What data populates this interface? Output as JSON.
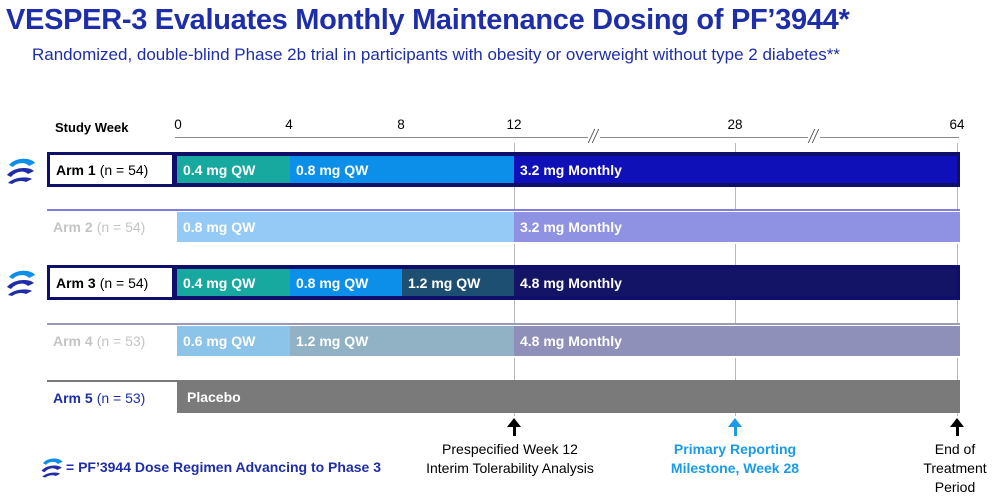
{
  "title": "VESPER-3 Evaluates Monthly Maintenance Dosing of PF’3944*",
  "subtitle": "Randomized, double-blind Phase 2b trial in participants with obesity or overweight without type 2 diabetes**",
  "axis": {
    "label": "Study Week",
    "ticks": [
      "0",
      "4",
      "8",
      "12",
      "28",
      "64"
    ]
  },
  "arms": [
    {
      "name": "Arm 1",
      "n": "(n = 54)",
      "segments": [
        "0.4 mg QW",
        "0.8 mg QW",
        "3.2 mg Monthly"
      ],
      "advancing": true
    },
    {
      "name": "Arm 2",
      "n": "(n = 54)",
      "segments": [
        "0.8 mg QW",
        "3.2 mg Monthly"
      ],
      "advancing": false
    },
    {
      "name": "Arm 3",
      "n": "(n = 54)",
      "segments": [
        "0.4 mg QW",
        "0.8 mg QW",
        "1.2 mg QW",
        "4.8 mg Monthly"
      ],
      "advancing": true
    },
    {
      "name": "Arm 4",
      "n": "(n = 53)",
      "segments": [
        "0.6 mg QW",
        "1.2 mg QW",
        "4.8 mg Monthly"
      ],
      "advancing": false
    },
    {
      "name": "Arm 5",
      "n": "(n = 53)",
      "segments": [
        "Placebo"
      ],
      "advancing": false
    }
  ],
  "milestones": {
    "week12": {
      "line1": "Prespecified Week 12",
      "line2": "Interim Tolerability Analysis"
    },
    "week28": {
      "line1": "Primary Reporting",
      "line2": "Milestone, Week 28"
    },
    "end": {
      "line1": "End of",
      "line2": "Treatment",
      "line3": "Period"
    }
  },
  "legend": {
    "text": "= PF’3944 Dose Regimen Advancing to Phase 3",
    "icon": "pfizer-logo-icon"
  },
  "colors": {
    "title": "#1e2ea8",
    "navy": "#0f0f6b",
    "teal": "#17a9a0",
    "blue": "#0b8fe8",
    "dark_teal": "#1d4f73",
    "monthly_blue": "#1010b8",
    "placebo": "#7a7a7a",
    "milestone_blue": "#1a9be8"
  }
}
